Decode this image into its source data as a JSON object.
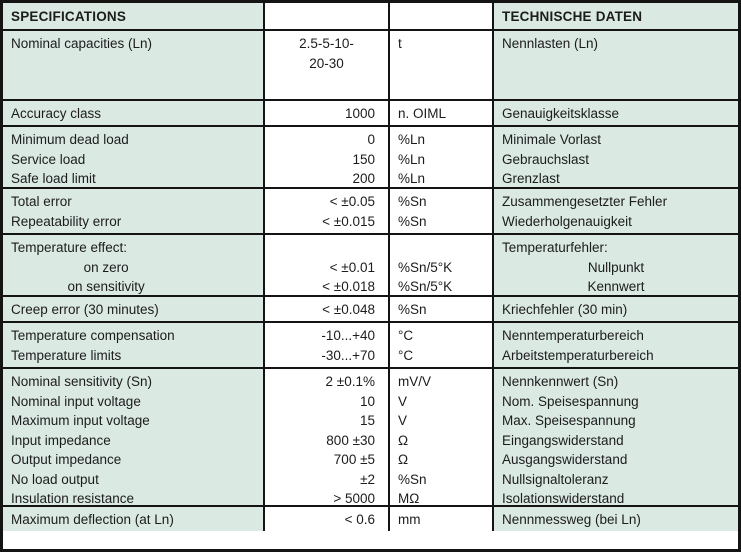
{
  "header": {
    "left": "SPECIFICATIONS",
    "right": "TECHNISCHE DATEN"
  },
  "colors": {
    "cell_bg": "#dbe9e3",
    "white_bg": "#ffffff",
    "border": "#141414",
    "text": "#1c1c1c"
  },
  "columns": [
    "specification",
    "value",
    "unit",
    "german"
  ],
  "rows": [
    {
      "name": "nominal-capacities",
      "value_align": "center",
      "lines": [
        {
          "spec": "Nominal capacities (Ln)",
          "value": "2.5-5-10-",
          "unit": "t",
          "german": "Nennlasten (Ln)"
        },
        {
          "spec": "",
          "value": "20-30",
          "unit": "",
          "german": ""
        }
      ]
    },
    {
      "name": "accuracy-class",
      "lines": [
        {
          "spec": "Accuracy class",
          "value": "1000",
          "unit": "n. OIML",
          "german": "Genauigkeitsklasse"
        }
      ]
    },
    {
      "name": "load-limits",
      "lines": [
        {
          "spec": "Minimum dead load",
          "value": "0",
          "unit": "%Ln",
          "german": "Minimale Vorlast"
        },
        {
          "spec": "Service load",
          "value": "150",
          "unit": "%Ln",
          "german": "Gebrauchslast"
        },
        {
          "spec": "Safe load limit",
          "value": "200",
          "unit": "%Ln",
          "german": "Grenzlast"
        }
      ]
    },
    {
      "name": "errors",
      "lines": [
        {
          "spec": "Total error",
          "value": "< ±0.05",
          "unit": "%Sn",
          "german": "Zusammengesetzter Fehler"
        },
        {
          "spec": "Repeatability error",
          "value": "< ±0.015",
          "unit": "%Sn",
          "german": "Wiederholgenauigkeit"
        }
      ]
    },
    {
      "name": "temperature-effect",
      "lines": [
        {
          "spec": "Temperature effect:",
          "value": "",
          "unit": "",
          "german": "Temperaturfehler:"
        },
        {
          "spec": "on zero",
          "spec_indent": true,
          "value": "< ±0.01",
          "unit": "%Sn/5°K",
          "german": "Nullpunkt",
          "german_indent": true
        },
        {
          "spec": "on sensitivity",
          "spec_indent": true,
          "value": "< ±0.018",
          "unit": "%Sn/5°K",
          "german": "Kennwert",
          "german_indent": true
        }
      ]
    },
    {
      "name": "creep-error",
      "lines": [
        {
          "spec": "Creep error (30 minutes)",
          "value": "< ±0.048",
          "unit": "%Sn",
          "german": "Kriechfehler (30 min)"
        }
      ]
    },
    {
      "name": "temperature-range",
      "lines": [
        {
          "spec": "Temperature compensation",
          "value": "-10...+40",
          "unit": "°C",
          "german": "Nenntemperaturbereich"
        },
        {
          "spec": "Temperature limits",
          "value": "-30...+70",
          "unit": "°C",
          "german": "Arbeitstemperaturbereich"
        }
      ]
    },
    {
      "name": "electrical",
      "lines": [
        {
          "spec": "Nominal sensitivity (Sn)",
          "value": "2 ±0.1%",
          "unit": "mV/V",
          "german": "Nennkennwert (Sn)"
        },
        {
          "spec": "Nominal input voltage",
          "value": "10",
          "unit": "V",
          "german": "Nom. Speisespannung"
        },
        {
          "spec": "Maximum input voltage",
          "value": "15",
          "unit": "V",
          "german": "Max. Speisespannung"
        },
        {
          "spec": "Input impedance",
          "value": "800 ±30",
          "unit": "Ω",
          "german": "Eingangswiderstand"
        },
        {
          "spec": "Output impedance",
          "value": "700 ±5",
          "unit": "Ω",
          "german": "Ausgangswiderstand"
        },
        {
          "spec": "No load output",
          "value": "±2",
          "unit": "%Sn",
          "german": "Nullsignaltoleranz"
        },
        {
          "spec": "Insulation resistance",
          "value": "> 5000",
          "unit": "MΩ",
          "german": "Isolationswiderstand"
        }
      ]
    },
    {
      "name": "deflection",
      "lines": [
        {
          "spec": "Maximum deflection (at Ln)",
          "value": "< 0.6",
          "unit": "mm",
          "german": "Nennmessweg (bei Ln)"
        }
      ]
    }
  ]
}
